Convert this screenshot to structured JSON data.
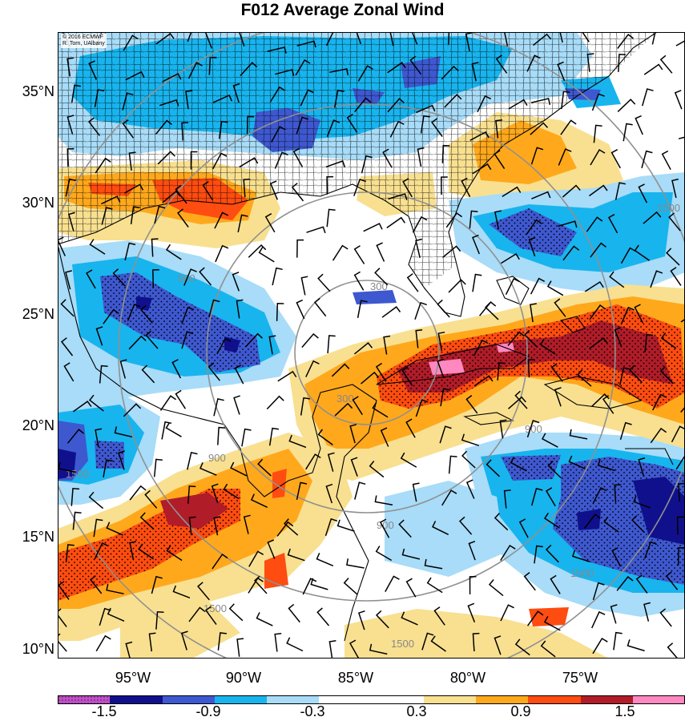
{
  "title": "F012 Average Zonal Wind",
  "credit": [
    "© 2016 ECMWF",
    "R. Torn, UAlbany"
  ],
  "lat_labels": [
    "35°N",
    "30°N",
    "25°N",
    "20°N",
    "15°N",
    "10°N"
  ],
  "lon_labels": [
    "95°W",
    "90°W",
    "85°W",
    "80°W",
    "75°W"
  ],
  "range_ring_labels": [
    "300",
    "300",
    "900",
    "900",
    "900",
    "900",
    "1500",
    "1500",
    "1500",
    "1500",
    "1500"
  ],
  "colorbar": {
    "colors": [
      "#c050c8",
      "#10108c",
      "#3e58d0",
      "#18b4ee",
      "#a8dcf8",
      "#ffffff",
      "#ffffff",
      "#f8e090",
      "#ffa81c",
      "#ff4c10",
      "#b01c28",
      "#ff88c0"
    ],
    "labels": [
      "-1.5",
      "-0.9",
      "-0.3",
      "0.3",
      "0.9",
      "1.5"
    ]
  },
  "fill_colors": {
    "neg_strong": "#10108c",
    "neg_mod": "#3e58d0",
    "neg_weak": "#18b4ee",
    "neg_light": "#a8dcf8",
    "pos_light": "#f8e090",
    "pos_weak": "#ffa81c",
    "pos_mod": "#ff4c10",
    "pos_strong": "#b01c28",
    "pos_max": "#ff88c0",
    "range_ring": "#909090",
    "coast": "#000000"
  }
}
